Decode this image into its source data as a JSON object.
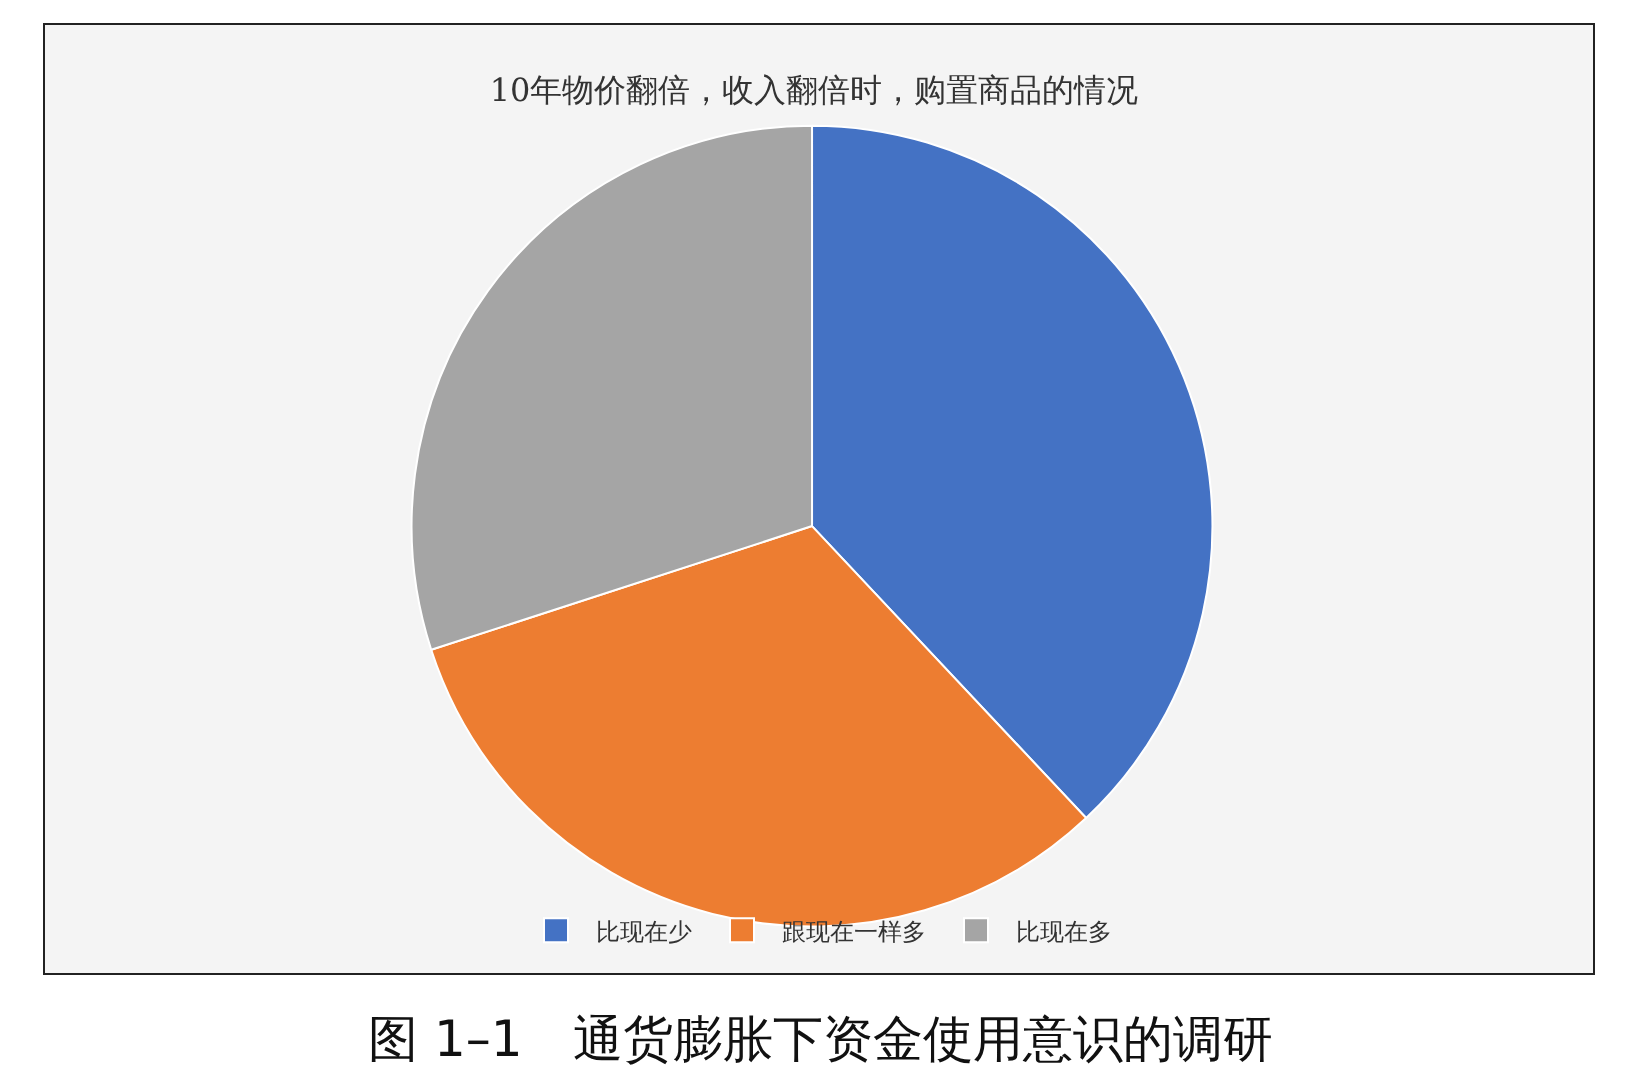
{
  "chart_data": {
    "type": "pie",
    "title": "10年物价翻倍，收入翻倍时，购置商品的情况",
    "categories": [
      "比现在少",
      "跟现在一样多",
      "比现在多"
    ],
    "values": [
      38,
      32,
      30
    ],
    "colors": [
      "#4472c4",
      "#ed7d31",
      "#a5a5a5"
    ],
    "legend": "bottom",
    "annotations": [
      "图 1–1　通货膨胀下资金使用意识的调研"
    ]
  }
}
